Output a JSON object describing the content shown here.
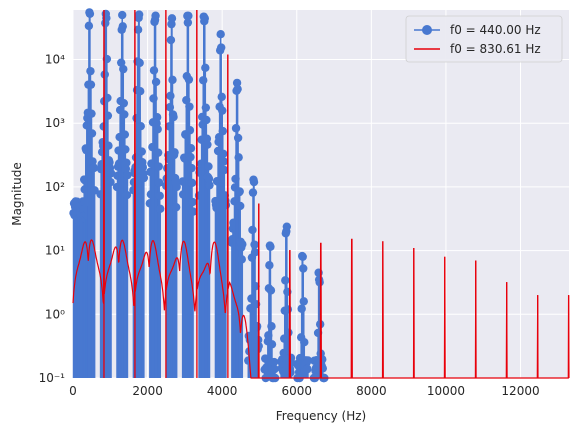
{
  "chart_data": {
    "type": "line",
    "xlabel": "Frequency (Hz)",
    "ylabel": "Magnitude",
    "xlim": [
      0,
      13300
    ],
    "ylim": [
      0.1,
      60000
    ],
    "yscale": "log",
    "grid": true,
    "legend_position": "top-right",
    "x_ticks": [
      0,
      2000,
      4000,
      6000,
      8000,
      10000,
      12000
    ],
    "x_tick_labels": [
      "0",
      "2000",
      "4000",
      "6000",
      "8000",
      "10000",
      "12000"
    ],
    "y_ticks": [
      0.1,
      1,
      10,
      100,
      1000,
      10000
    ],
    "y_tick_labels": [
      "10⁻¹",
      "10⁰",
      "10¹",
      "10²",
      "10³",
      "10⁴"
    ],
    "series": [
      {
        "name": "f0 = 440.00 Hz",
        "color": "#4878d0",
        "style": "stem",
        "peaks": [
          {
            "x": 440,
            "y": 55000
          },
          {
            "x": 880,
            "y": 52000
          },
          {
            "x": 1320,
            "y": 50000
          },
          {
            "x": 1760,
            "y": 45000
          },
          {
            "x": 2200,
            "y": 42000
          },
          {
            "x": 2640,
            "y": 36000
          },
          {
            "x": 3080,
            "y": 38000
          },
          {
            "x": 3520,
            "y": 40000
          },
          {
            "x": 3960,
            "y": 25000
          },
          {
            "x": 4400,
            "y": 4300
          },
          {
            "x": 4840,
            "y": 130
          },
          {
            "x": 5280,
            "y": 12
          },
          {
            "x": 5720,
            "y": 20
          },
          {
            "x": 6160,
            "y": 8
          },
          {
            "x": 6600,
            "y": 3.5
          }
        ],
        "floor": 0.15
      },
      {
        "name": "f0 = 830.61 Hz",
        "color": "#e8000b",
        "style": "line",
        "peaks": [
          {
            "x": 830.61,
            "y": 60000
          },
          {
            "x": 1661.22,
            "y": 60000
          },
          {
            "x": 2491.83,
            "y": 60000
          },
          {
            "x": 3322.44,
            "y": 60000
          },
          {
            "x": 4153.05,
            "y": 12000
          },
          {
            "x": 4983.66,
            "y": 55
          },
          {
            "x": 5814.27,
            "y": 10
          },
          {
            "x": 6644.88,
            "y": 13
          },
          {
            "x": 7475.49,
            "y": 15
          },
          {
            "x": 8306.1,
            "y": 14
          },
          {
            "x": 9136.71,
            "y": 11
          },
          {
            "x": 9967.32,
            "y": 8
          },
          {
            "x": 10797.93,
            "y": 7
          },
          {
            "x": 11628.54,
            "y": 3.2
          },
          {
            "x": 12459.15,
            "y": 2
          },
          {
            "x": 13289.76,
            "y": 2
          }
        ]
      }
    ]
  }
}
